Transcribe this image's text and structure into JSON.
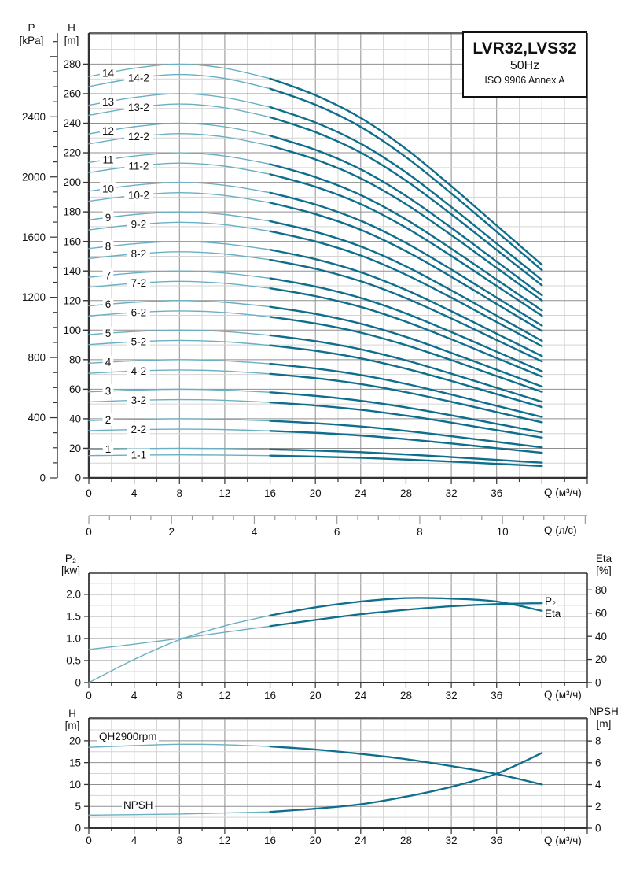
{
  "colors": {
    "curve_dark": "#0e6e8c",
    "curve_light": "#6ab0c2",
    "grid_major": "#8f8f8f",
    "grid_minor": "#d4d4d4",
    "axis": "#333333",
    "ruler_gray": "#9a9a9a",
    "text": "#111111"
  },
  "title_box": {
    "model": "LVR32,LVS32",
    "frequency": "50Hz",
    "standard": "ISO 9906 Annex A"
  },
  "headers": {
    "p": "P",
    "p_unit": "[kPa]",
    "h": "H",
    "h_unit": "[m]",
    "q_m3h": "Q (м³/ч)",
    "q_ls": "Q (л/с)",
    "p2": "P₂",
    "p2_unit": "[kw]",
    "eta": "Eta",
    "eta_unit": "[%]",
    "h2": "H",
    "h2_unit": "[m]",
    "npsh": "NPSH",
    "npsh_unit": "[m]"
  },
  "curve_end_labels": {
    "p2": "P₂",
    "eta": "Eta"
  },
  "curve_annotations": {
    "qh": "QH2900rpm",
    "npsh": "NPSH"
  },
  "ls_axis": {
    "label": "Q (л/с)",
    "tick_labels": [
      0,
      2,
      4,
      6,
      8,
      10
    ],
    "minor_step": 0.5,
    "max": 12.05
  },
  "chart_data": [
    {
      "id": "qh-multistage",
      "type": "line",
      "title": "LVR32,LVS32 50Hz ISO 9906 Annex A",
      "xlabel": "Q (м³/ч)",
      "ylabel": "H [m]",
      "ylabel_secondary": "P [kPa]",
      "xlim": [
        0,
        44
      ],
      "ylim": [
        0,
        301
      ],
      "grid": true,
      "x": [
        0,
        4,
        8,
        12,
        16,
        20,
        24,
        28,
        32,
        36,
        40
      ],
      "x_tick_labels": [
        0,
        4,
        8,
        12,
        16,
        20,
        24,
        28,
        32,
        36
      ],
      "y_tick_labels": [
        0,
        20,
        40,
        60,
        80,
        100,
        120,
        140,
        160,
        180,
        200,
        220,
        240,
        260,
        280
      ],
      "p_tick_labels": [
        0,
        400,
        800,
        1200,
        1600,
        2000,
        2400
      ],
      "p_max": 2956,
      "series": [
        {
          "label": "1",
          "label_q": 1.7,
          "values": [
            19.4,
            19.8,
            20.0,
            19.8,
            19.3,
            18.5,
            17.4,
            15.9,
            14.1,
            12.2,
            10.3
          ]
        },
        {
          "label": "1-1",
          "label_q": 4.4,
          "values": [
            15.1,
            15.4,
            15.6,
            15.4,
            15.1,
            14.4,
            13.6,
            12.4,
            11.0,
            9.5,
            8.0
          ]
        },
        {
          "label": "2",
          "label_q": 1.7,
          "values": [
            38.8,
            39.6,
            40.0,
            39.6,
            38.6,
            37.0,
            34.8,
            31.8,
            28.2,
            24.4,
            20.6
          ]
        },
        {
          "label": "2-2",
          "label_q": 4.4,
          "values": [
            32.0,
            32.7,
            33.0,
            32.7,
            31.8,
            30.5,
            28.7,
            26.2,
            23.3,
            20.1,
            17.0
          ]
        },
        {
          "label": "3",
          "label_q": 1.7,
          "values": [
            58.2,
            59.4,
            60.0,
            59.4,
            57.9,
            55.5,
            52.2,
            47.7,
            42.3,
            36.6,
            30.9
          ]
        },
        {
          "label": "3-2",
          "label_q": 4.4,
          "values": [
            51.4,
            52.5,
            53.0,
            52.5,
            51.1,
            49.0,
            46.1,
            42.1,
            37.4,
            32.3,
            27.3
          ]
        },
        {
          "label": "4",
          "label_q": 1.7,
          "values": [
            77.6,
            79.2,
            80.0,
            79.2,
            77.2,
            74.0,
            69.6,
            63.6,
            56.4,
            48.8,
            41.2
          ]
        },
        {
          "label": "4-2",
          "label_q": 4.4,
          "values": [
            70.8,
            72.3,
            73.0,
            72.3,
            70.4,
            67.5,
            63.5,
            58.0,
            51.5,
            44.5,
            37.6
          ]
        },
        {
          "label": "5",
          "label_q": 1.7,
          "values": [
            97.0,
            99.0,
            100.0,
            99.0,
            96.5,
            92.5,
            87.0,
            79.5,
            70.5,
            61.0,
            51.5
          ]
        },
        {
          "label": "5-2",
          "label_q": 4.4,
          "values": [
            90.2,
            92.1,
            93.0,
            92.1,
            89.7,
            86.0,
            80.9,
            73.9,
            65.6,
            56.7,
            47.9
          ]
        },
        {
          "label": "6",
          "label_q": 1.7,
          "values": [
            116.4,
            118.8,
            120.0,
            118.8,
            115.8,
            111.0,
            104.4,
            95.4,
            84.6,
            73.2,
            61.8
          ]
        },
        {
          "label": "6-2",
          "label_q": 4.4,
          "values": [
            109.6,
            111.9,
            113.0,
            111.9,
            109.0,
            104.5,
            98.3,
            89.8,
            79.7,
            68.9,
            58.2
          ]
        },
        {
          "label": "7",
          "label_q": 1.7,
          "values": [
            135.8,
            138.6,
            140.0,
            138.6,
            135.1,
            129.5,
            121.8,
            111.3,
            98.7,
            85.4,
            72.1
          ]
        },
        {
          "label": "7-2",
          "label_q": 4.4,
          "values": [
            129.0,
            131.7,
            133.0,
            131.7,
            128.3,
            123.0,
            115.7,
            105.7,
            93.8,
            81.1,
            68.5
          ]
        },
        {
          "label": "8",
          "label_q": 1.7,
          "values": [
            155.2,
            158.4,
            160.0,
            158.4,
            154.4,
            148.0,
            139.2,
            127.2,
            112.8,
            97.6,
            82.4
          ]
        },
        {
          "label": "8-2",
          "label_q": 4.4,
          "values": [
            148.4,
            151.5,
            153.0,
            151.5,
            147.6,
            141.5,
            133.1,
            121.6,
            107.9,
            93.3,
            78.8
          ]
        },
        {
          "label": "9",
          "label_q": 1.7,
          "values": [
            174.6,
            178.2,
            180.0,
            178.2,
            173.7,
            166.5,
            156.6,
            143.1,
            126.9,
            109.8,
            92.7
          ]
        },
        {
          "label": "9-2",
          "label_q": 4.4,
          "values": [
            167.8,
            171.3,
            173.0,
            171.3,
            166.9,
            160.0,
            150.5,
            137.5,
            122.0,
            105.5,
            89.1
          ]
        },
        {
          "label": "10",
          "label_q": 1.7,
          "values": [
            194.0,
            198.0,
            200.0,
            198.0,
            193.0,
            185.0,
            174.0,
            159.0,
            141.0,
            122.0,
            103.0
          ]
        },
        {
          "label": "10-2",
          "label_q": 4.4,
          "values": [
            187.2,
            191.1,
            193.0,
            191.1,
            186.2,
            178.5,
            167.9,
            153.4,
            136.1,
            117.7,
            99.4
          ]
        },
        {
          "label": "11",
          "label_q": 1.7,
          "values": [
            213.4,
            217.8,
            220.0,
            217.8,
            212.3,
            203.5,
            191.4,
            174.9,
            155.1,
            134.2,
            113.3
          ]
        },
        {
          "label": "11-2",
          "label_q": 4.4,
          "values": [
            206.6,
            210.9,
            213.0,
            210.9,
            205.5,
            197.0,
            185.3,
            169.3,
            150.2,
            129.9,
            109.7
          ]
        },
        {
          "label": "12",
          "label_q": 1.7,
          "values": [
            232.8,
            237.6,
            240.0,
            237.6,
            231.6,
            222.0,
            208.8,
            190.8,
            169.2,
            146.4,
            123.6
          ]
        },
        {
          "label": "12-2",
          "label_q": 4.4,
          "values": [
            226.0,
            230.7,
            233.0,
            230.7,
            224.8,
            215.5,
            202.7,
            185.2,
            164.3,
            142.1,
            120.0
          ]
        },
        {
          "label": "13",
          "label_q": 1.7,
          "values": [
            252.2,
            257.4,
            260.0,
            257.4,
            250.9,
            240.5,
            226.2,
            206.7,
            183.3,
            158.6,
            133.9
          ]
        },
        {
          "label": "13-2",
          "label_q": 4.4,
          "values": [
            245.4,
            250.5,
            253.0,
            250.5,
            244.1,
            234.0,
            220.1,
            201.1,
            178.4,
            154.3,
            130.3
          ]
        },
        {
          "label": "14",
          "label_q": 1.7,
          "values": [
            271.6,
            277.2,
            280.0,
            277.2,
            270.2,
            259.0,
            243.6,
            222.6,
            197.4,
            170.8,
            144.2
          ]
        },
        {
          "label": "14-2",
          "label_q": 4.4,
          "values": [
            264.8,
            270.3,
            273.0,
            270.3,
            263.4,
            252.5,
            237.5,
            217.0,
            192.5,
            166.6,
            140.6
          ]
        }
      ]
    },
    {
      "id": "power-efficiency",
      "type": "line",
      "xlabel": "Q (м³/ч)",
      "xlim": [
        0,
        44
      ],
      "x": [
        0,
        4,
        8,
        12,
        16,
        20,
        24,
        28,
        32,
        36,
        40
      ],
      "x_tick_labels": [
        0,
        4,
        8,
        12,
        16,
        20,
        24,
        28,
        32,
        36
      ],
      "left_axis": {
        "label": "P₂ [kw]",
        "tick_labels": [
          "2.0",
          "1.5",
          "1.0",
          "0.5",
          "0"
        ],
        "tick_values": [
          2.0,
          1.5,
          1.0,
          0.5,
          0
        ],
        "max": 2.48,
        "minor_step": 0.25
      },
      "right_axis": {
        "label": "Eta [%]",
        "tick_labels": [
          "80",
          "60",
          "40",
          "20",
          "0"
        ],
        "tick_values": [
          80,
          60,
          40,
          20,
          0
        ],
        "max": 94.5
      },
      "series": [
        {
          "label": "P₂",
          "axis": "left",
          "values": [
            0.75,
            0.87,
            1.0,
            1.14,
            1.28,
            1.42,
            1.55,
            1.65,
            1.73,
            1.78,
            1.8
          ]
        },
        {
          "label": "Eta",
          "axis": "right",
          "values": [
            0,
            20,
            37,
            49,
            58,
            65,
            70,
            73,
            72.5,
            70,
            62
          ]
        }
      ]
    },
    {
      "id": "qh2900-npsh",
      "type": "line",
      "xlabel": "Q (м³/ч)",
      "xlim": [
        0,
        44
      ],
      "x": [
        0,
        4,
        8,
        12,
        16,
        20,
        24,
        28,
        32,
        36,
        40
      ],
      "x_tick_labels": [
        0,
        4,
        8,
        12,
        16,
        20,
        24,
        28,
        32,
        36
      ],
      "left_axis": {
        "label": "H [m]",
        "tick_labels": [
          "20",
          "15",
          "10",
          "5",
          "0"
        ],
        "tick_values": [
          20,
          15,
          10,
          5,
          0
        ],
        "max": 25.2,
        "minor_step": 2.5
      },
      "right_axis": {
        "label": "NPSH [m]",
        "tick_labels": [
          "8",
          "6",
          "4",
          "2",
          "0"
        ],
        "tick_values": [
          8,
          6,
          4,
          2,
          0
        ],
        "max": 10.1
      },
      "series": [
        {
          "label": "QH2900rpm",
          "axis": "left",
          "values": [
            18.5,
            18.9,
            19.2,
            19.1,
            18.7,
            18.0,
            17.0,
            15.8,
            14.2,
            12.4,
            10.0
          ]
        },
        {
          "label": "NPSH",
          "axis": "right",
          "values": [
            1.2,
            1.25,
            1.3,
            1.4,
            1.5,
            1.8,
            2.2,
            2.9,
            3.8,
            5.0,
            6.9
          ]
        }
      ]
    }
  ]
}
